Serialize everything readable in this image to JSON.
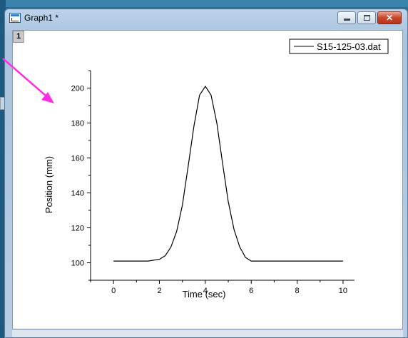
{
  "window": {
    "title": "Graph1 *",
    "layer_label": "1",
    "controls": [
      "minimize",
      "maximize",
      "close"
    ]
  },
  "chart_data": {
    "type": "line",
    "xlabel": "Time (sec)",
    "ylabel": "Position (mm)",
    "xlim": [
      -1,
      10.5
    ],
    "ylim": [
      90,
      210
    ],
    "x_ticks": [
      0,
      2,
      4,
      6,
      8,
      10
    ],
    "y_ticks": [
      100,
      120,
      140,
      160,
      180,
      200
    ],
    "legend_position": "top-right",
    "series": [
      {
        "name": "S15-125-03.dat",
        "color": "#000000",
        "x": [
          0,
          0.5,
          1,
          1.5,
          2,
          2.25,
          2.5,
          2.75,
          3,
          3.25,
          3.5,
          3.75,
          4,
          4.25,
          4.5,
          4.75,
          5,
          5.25,
          5.5,
          5.75,
          6,
          6.5,
          7,
          8,
          9,
          10
        ],
        "y": [
          101,
          101,
          101,
          101,
          102,
          104,
          109,
          118,
          133,
          155,
          178,
          196,
          201,
          196,
          180,
          157,
          135,
          119,
          109,
          103,
          101,
          101,
          101,
          101,
          101,
          101
        ]
      }
    ]
  },
  "colors": {
    "annotation_arrow": "#ff2ee6",
    "close_button": "#c8452a"
  }
}
